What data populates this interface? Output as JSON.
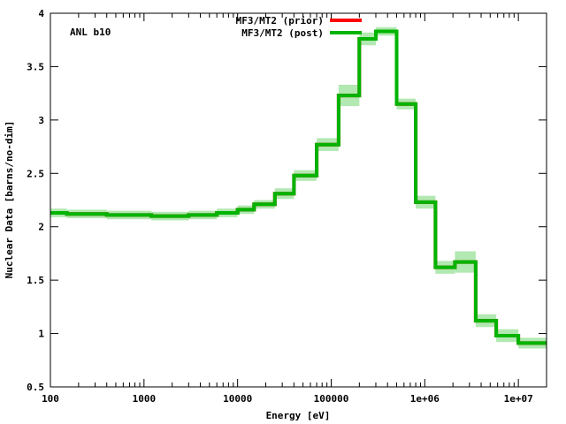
{
  "chart_data": {
    "type": "line",
    "xscale": "log",
    "xlabel": "Energy [eV]",
    "ylabel": "Nuclear Data [barns/no-dim]",
    "xlim": [
      100,
      20000000
    ],
    "ylim": [
      0.5,
      4
    ],
    "x_ticks": [
      "100",
      "1000",
      "10000",
      "100000",
      "1e+06",
      "1e+07"
    ],
    "y_ticks": [
      "0.5",
      "1",
      "1.5",
      "2",
      "2.5",
      "3",
      "3.5",
      "4"
    ],
    "annotation": "ANL b10",
    "grid": false,
    "legend_position": "top-center",
    "bin_edges": [
      100,
      150,
      400,
      1200,
      3000,
      6000,
      10000,
      15000,
      25000,
      40000,
      70000,
      120000,
      200000,
      300000,
      500000,
      800000,
      1300000,
      2100000,
      3500000,
      5800000,
      10000000,
      20000000
    ],
    "series": [
      {
        "name": "MF3/MT2 (prior)",
        "color": "#ff0000",
        "values": [
          2.13,
          2.12,
          2.11,
          2.1,
          2.11,
          2.13,
          2.16,
          2.21,
          2.31,
          2.48,
          2.77,
          3.23,
          3.76,
          3.83,
          3.15,
          2.23,
          1.62,
          1.67,
          1.12,
          0.98,
          0.91
        ]
      },
      {
        "name": "MF3/MT2 (post)",
        "color": "#00b400",
        "values": [
          2.13,
          2.12,
          2.11,
          2.1,
          2.11,
          2.13,
          2.16,
          2.21,
          2.31,
          2.48,
          2.77,
          3.23,
          3.76,
          3.83,
          3.15,
          2.23,
          1.62,
          1.67,
          1.12,
          0.98,
          0.91
        ],
        "uncertainty": [
          0.04,
          0.04,
          0.04,
          0.04,
          0.04,
          0.04,
          0.04,
          0.04,
          0.05,
          0.05,
          0.06,
          0.1,
          0.06,
          0.04,
          0.05,
          0.06,
          0.06,
          0.1,
          0.06,
          0.06,
          0.05
        ]
      }
    ]
  }
}
